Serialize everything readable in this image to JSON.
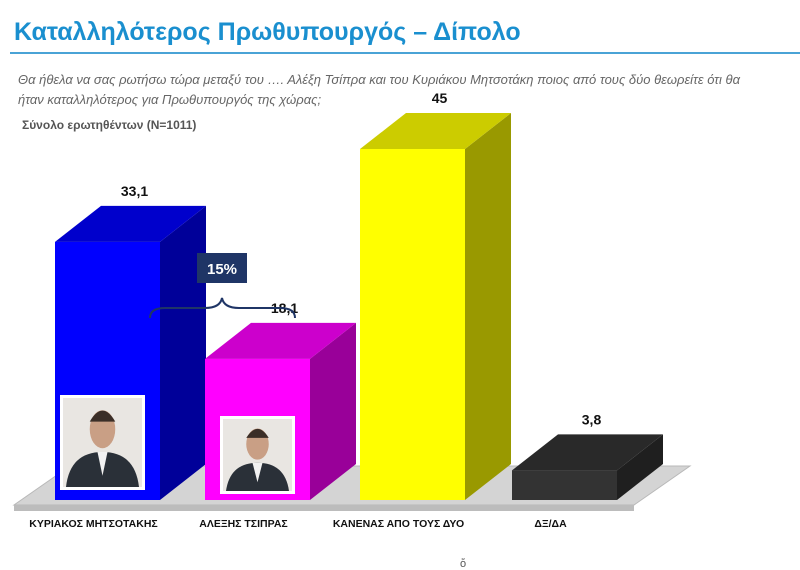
{
  "header": {
    "title": "Καταλληλότερος Πρωθυπουργός – Δίπολο",
    "question": "Θα ήθελα να σας ρωτήσω τώρα μεταξύ του …. Αλέξη Τσίπρα και του Κυριάκου Μητσοτάκη ποιος από τους δύο θεωρείτε ότι θα ήταν καταλληλότερος για Πρωθυπουργός της χώρας;",
    "base": "Σύνολο ερωτηθέντων (N=1011)"
  },
  "chart_data": {
    "type": "bar",
    "categories": [
      "ΚΥΡΙΑΚΟΣ ΜΗΤΣΟΤΑΚΗΣ",
      "ΑΛΕΞΗΣ ΤΣΙΠΡΑΣ",
      "ΚΑΝΕΝΑΣ ΑΠΟ ΤΟΥΣ ΔΥΟ",
      "ΔΞ/ΔΑ"
    ],
    "values": [
      33.1,
      18.1,
      45,
      3.8
    ],
    "value_labels": [
      "33,1",
      "18,1",
      "45",
      "3,8"
    ],
    "colors": [
      "#0000ff",
      "#ff00ff",
      "#ffff00",
      "#333333"
    ],
    "annotation": "15%",
    "style": "3d"
  },
  "photos": [
    {
      "category": "ΚΥΡΙΑΚΟΣ ΜΗΤΣΟΤΑΚΗΣ",
      "icon": "person-photo-icon"
    },
    {
      "category": "ΑΛΕΞΗΣ ΤΣΙΠΡΑΣ",
      "icon": "person-photo-icon"
    }
  ],
  "footer": {
    "mark": "ὅ"
  }
}
